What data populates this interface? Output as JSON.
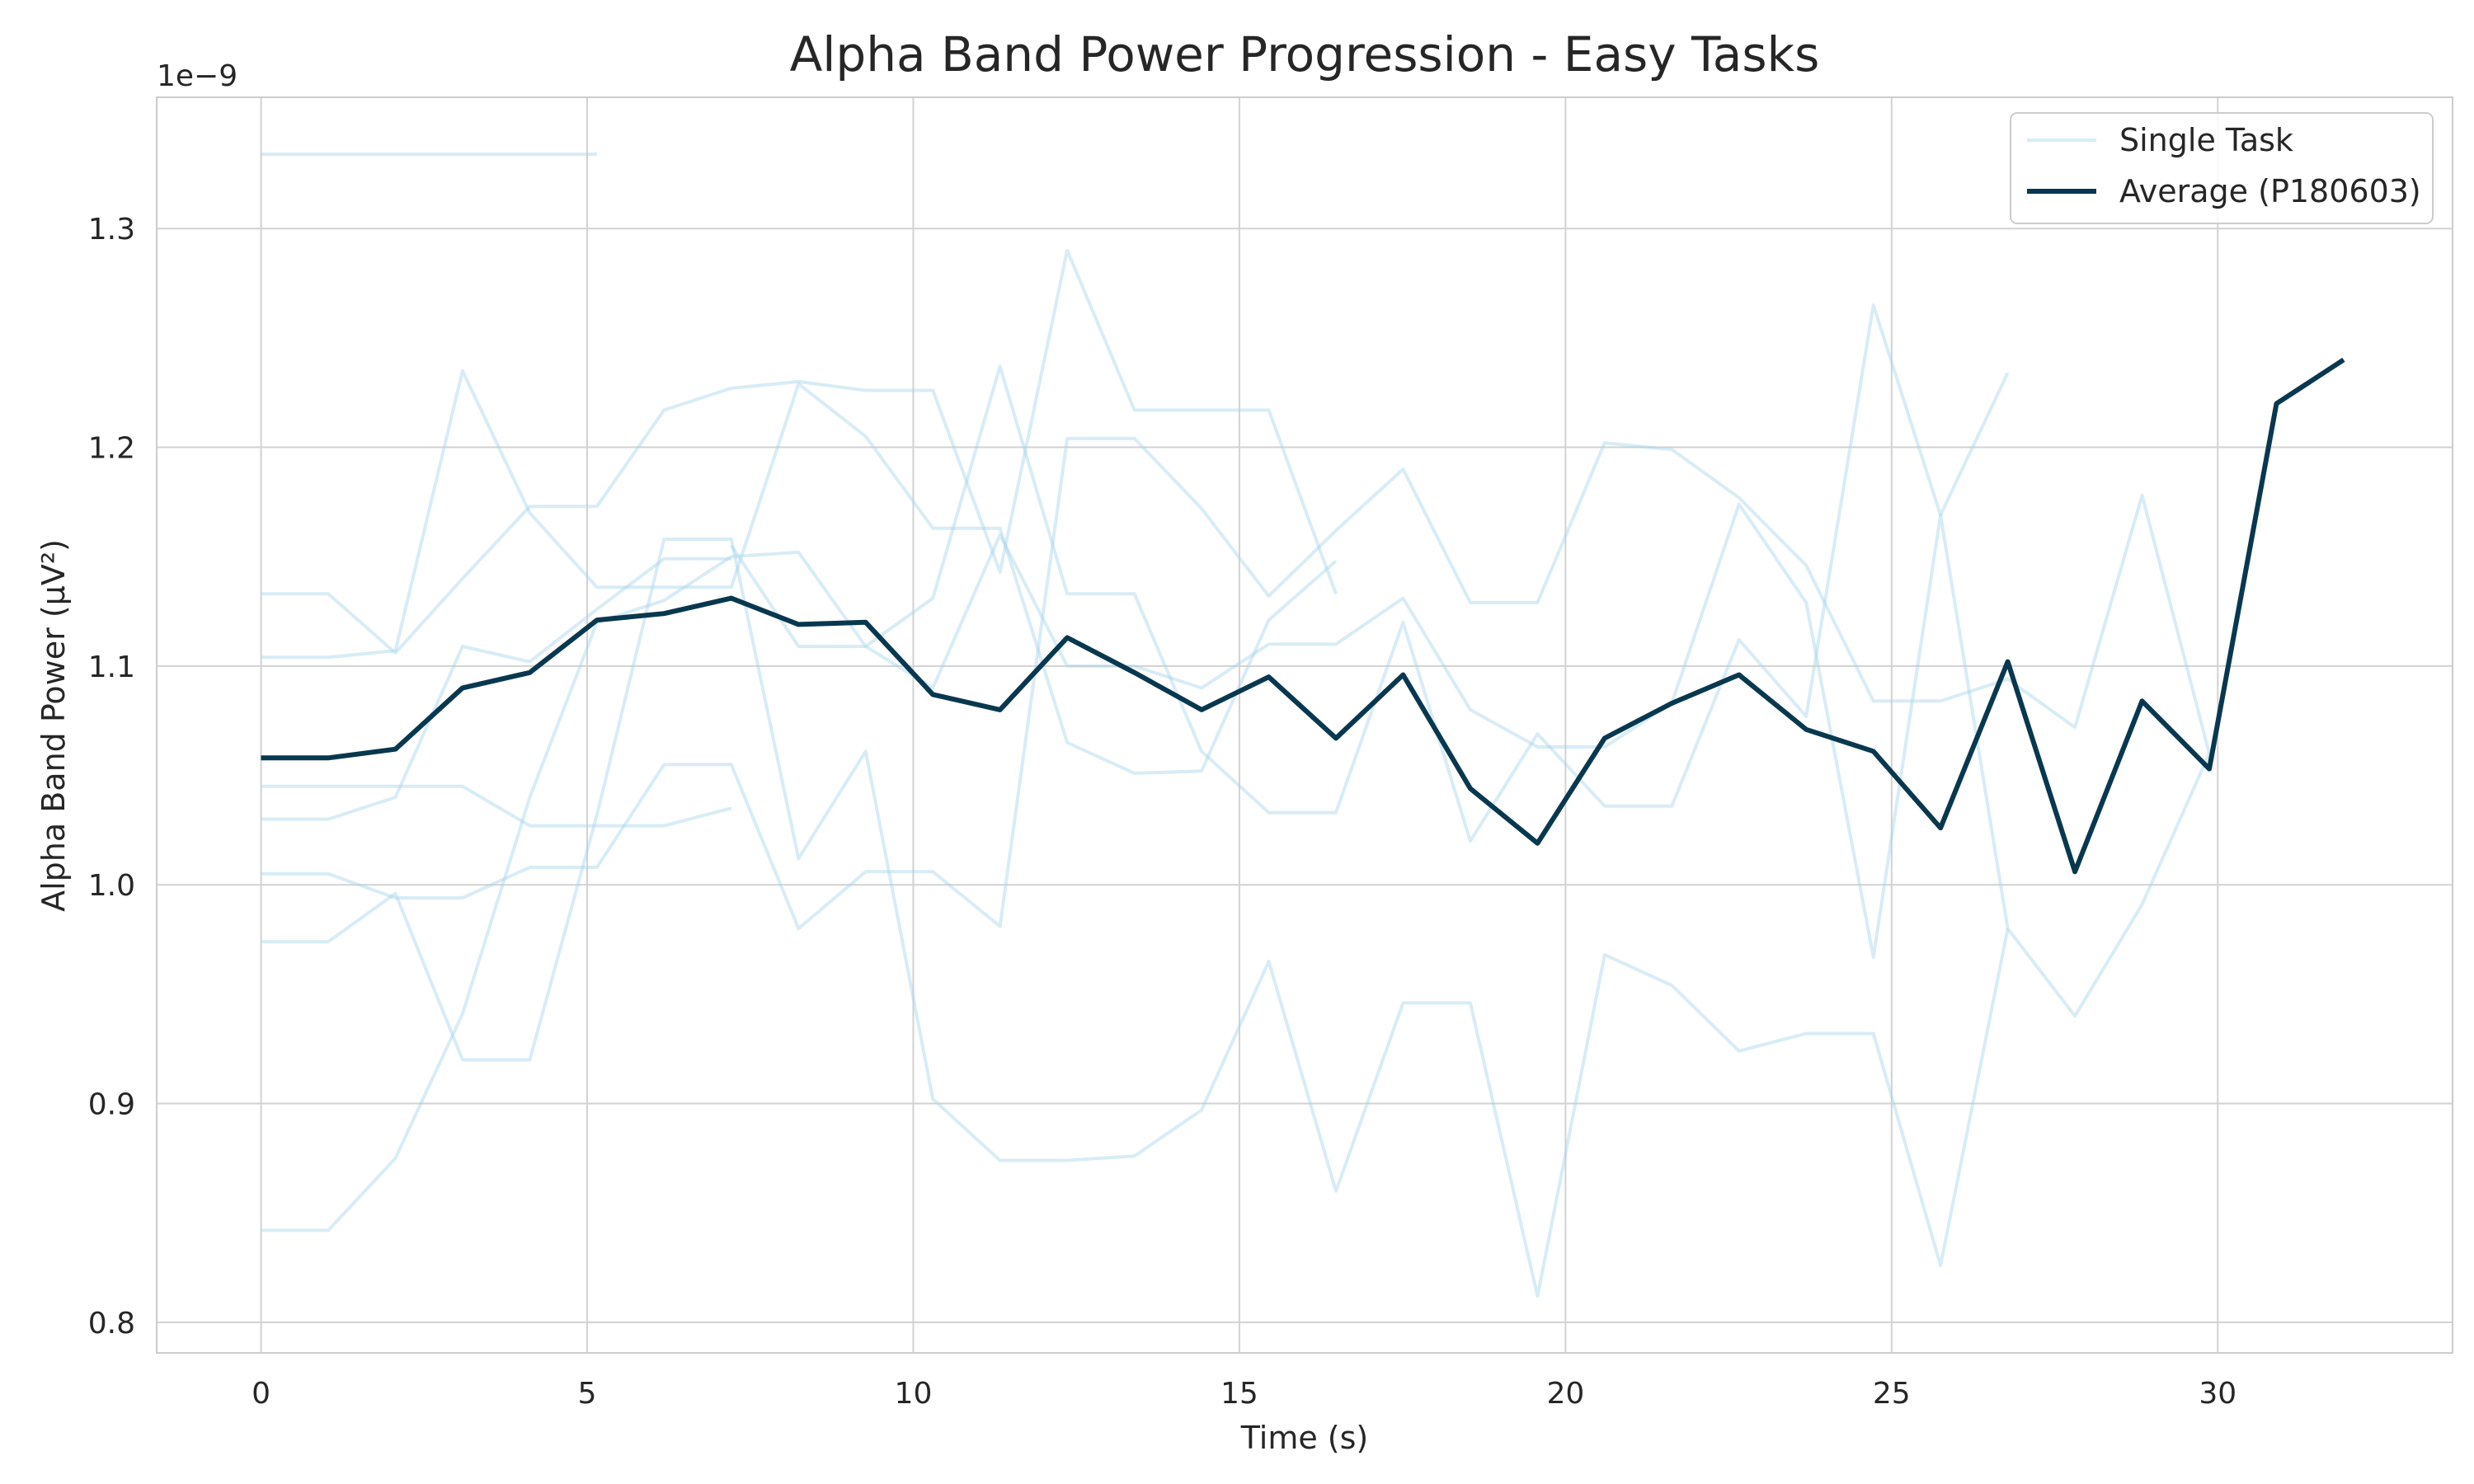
{
  "chart_data": {
    "type": "line",
    "title": "Alpha Band Power Progression - Easy Tasks",
    "xlabel": "Time (s)",
    "ylabel": "Alpha Band Power (μV²)",
    "y_offset_label": "1e−9",
    "xlim": [
      -1.6,
      33.6
    ],
    "ylim": [
      0.786,
      1.36
    ],
    "xticks": [
      0,
      5,
      10,
      15,
      20,
      25,
      30
    ],
    "yticks": [
      0.8,
      0.9,
      1.0,
      1.1,
      1.2,
      1.3
    ],
    "ytick_labels": [
      "0.8",
      "0.9",
      "1.0",
      "1.1",
      "1.2",
      "1.3"
    ],
    "grid": true,
    "legend": {
      "position": "top-right",
      "entries": [
        "Single Task",
        "Average (P180603)"
      ]
    },
    "colors": {
      "single_task": "#a6d4ea",
      "average": "#08384f",
      "grid": "#d2d2d2",
      "spine": "#cccccc"
    },
    "average": {
      "name": "Average (P180603)",
      "x": [
        0,
        1.03,
        2.06,
        3.09,
        4.12,
        5.15,
        6.18,
        7.21,
        8.24,
        9.27,
        10.3,
        11.33,
        12.36,
        13.39,
        14.42,
        15.45,
        16.48,
        17.51,
        18.54,
        19.57,
        20.6,
        21.63,
        22.66,
        23.69,
        24.72,
        25.75,
        26.78,
        27.81,
        28.84,
        29.87,
        30.9,
        31.93
      ],
      "y": [
        1.058,
        1.058,
        1.062,
        1.09,
        1.097,
        1.121,
        1.124,
        1.131,
        1.119,
        1.12,
        1.087,
        1.08,
        1.113,
        1.097,
        1.08,
        1.095,
        1.067,
        1.096,
        1.044,
        1.019,
        1.067,
        1.083,
        1.096,
        1.071,
        1.061,
        1.026,
        1.102,
        1.006,
        1.084,
        1.053,
        1.22,
        1.24
      ]
    },
    "single_tasks": [
      {
        "name": "Single Task",
        "x": [
          0,
          1.03,
          2.06,
          3.09,
          4.12,
          5.15
        ],
        "y": [
          1.334,
          1.334,
          1.334,
          1.334,
          1.334,
          1.334
        ]
      },
      {
        "name": "Single Task",
        "x": [
          0,
          1.03,
          2.06,
          3.09,
          4.12,
          5.15,
          6.18,
          7.21,
          8.24,
          9.27,
          10.3,
          11.33,
          12.36,
          13.39,
          14.42,
          15.45,
          16.48
        ],
        "y": [
          1.133,
          1.133,
          1.106,
          1.14,
          1.173,
          1.173,
          1.217,
          1.227,
          1.23,
          1.226,
          1.226,
          1.143,
          1.29,
          1.217,
          1.217,
          1.217,
          1.133
        ]
      },
      {
        "name": "Single Task",
        "x": [
          0,
          1.03,
          2.06,
          3.09,
          4.12,
          5.15,
          6.18,
          7.21,
          8.24,
          9.27,
          10.3,
          11.33,
          12.36,
          13.39,
          14.42,
          15.45,
          16.48
        ],
        "y": [
          1.104,
          1.104,
          1.107,
          1.235,
          1.17,
          1.136,
          1.136,
          1.136,
          1.229,
          1.205,
          1.163,
          1.163,
          1.065,
          1.051,
          1.052,
          1.121,
          1.148
        ]
      },
      {
        "name": "Single Task",
        "x": [
          0,
          1.03,
          2.06,
          3.09,
          4.12,
          5.15,
          6.18,
          7.21
        ],
        "y": [
          1.03,
          1.03,
          1.04,
          1.109,
          1.102,
          1.126,
          1.149,
          1.149
        ]
      },
      {
        "name": "Single Task",
        "x": [
          0,
          1.03,
          2.06,
          3.09,
          4.12,
          5.15,
          6.18,
          7.21
        ],
        "y": [
          1.045,
          1.045,
          1.045,
          1.045,
          1.027,
          1.027,
          1.027,
          1.035
        ]
      },
      {
        "name": "Single Task",
        "x": [
          0,
          1.03,
          2.06,
          3.09,
          4.12,
          5.15,
          6.18,
          7.21,
          8.24,
          9.27,
          10.3,
          11.33,
          12.36,
          13.39,
          14.42,
          15.45,
          16.48,
          17.51,
          18.54,
          19.57,
          20.6,
          21.63,
          22.66,
          23.69,
          24.72,
          25.75,
          26.78,
          27.81,
          28.84,
          29.87
        ],
        "y": [
          1.005,
          1.005,
          0.994,
          0.994,
          1.008,
          1.008,
          1.055,
          1.055,
          0.98,
          1.006,
          1.006,
          0.981,
          1.204,
          1.204,
          1.172,
          1.132,
          1.162,
          1.19,
          1.129,
          1.129,
          1.202,
          1.199,
          1.177,
          1.146,
          1.084,
          1.084,
          1.094,
          1.072,
          1.178,
          1.06
        ]
      },
      {
        "name": "Single Task",
        "x": [
          0,
          1.03,
          2.06,
          3.09,
          4.12,
          5.15,
          6.18,
          7.21,
          8.24,
          9.27,
          10.3,
          11.33,
          12.36,
          13.39,
          14.42,
          15.45,
          16.48,
          17.51,
          18.54,
          19.57,
          20.6,
          21.63,
          22.66,
          23.69,
          24.72,
          25.75,
          26.78
        ],
        "y": [
          0.974,
          0.974,
          0.996,
          0.92,
          0.92,
          1.032,
          1.158,
          1.158,
          1.012,
          1.061,
          0.902,
          0.874,
          0.874,
          0.876,
          0.897,
          0.965,
          0.86,
          0.946,
          0.946,
          0.812,
          0.968,
          0.954,
          0.924,
          0.932,
          0.932,
          0.826,
          0.98
        ]
      },
      {
        "name": "Single Task",
        "x": [
          0,
          1.03,
          2.06,
          3.09,
          4.12,
          5.15,
          6.18,
          7.21,
          8.24,
          9.27,
          10.3,
          11.33,
          12.36,
          13.39,
          14.42,
          15.45,
          16.48,
          17.51,
          18.54,
          19.57,
          20.6,
          21.63,
          22.66,
          23.69,
          24.72,
          25.75,
          26.78
        ],
        "y": [
          0.842,
          0.842,
          0.875,
          0.941,
          1.04,
          1.12,
          1.13,
          1.15,
          1.152,
          1.109,
          1.131,
          1.237,
          1.133,
          1.133,
          1.061,
          1.033,
          1.033,
          1.12,
          1.02,
          1.069,
          1.036,
          1.036,
          1.112,
          1.077,
          1.265,
          1.169,
          1.234
        ]
      },
      {
        "name": "Single Task",
        "x": [
          7.21,
          8.24,
          9.27,
          10.3,
          11.33,
          12.36,
          13.39,
          14.42,
          15.45,
          16.48,
          17.51,
          18.54,
          19.57,
          20.6,
          21.63,
          22.66,
          23.69,
          24.72,
          25.75,
          26.78,
          27.81,
          28.84,
          29.87
        ],
        "y": [
          1.155,
          1.109,
          1.109,
          1.09,
          1.16,
          1.1,
          1.1,
          1.09,
          1.11,
          1.11,
          1.131,
          1.08,
          1.063,
          1.063,
          1.083,
          1.174,
          1.129,
          0.967,
          1.169,
          0.98,
          0.94,
          0.991,
          1.06
        ]
      }
    ]
  }
}
